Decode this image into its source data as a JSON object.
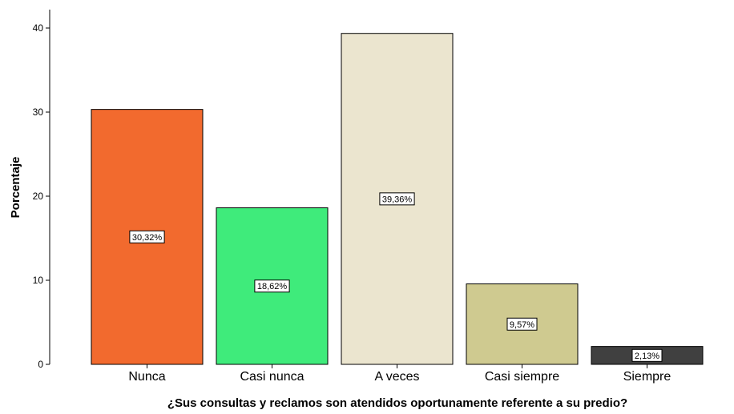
{
  "chart_data": {
    "type": "bar",
    "xlabel": "¿Sus consultas y reclamos son atendidos oportunamente referente a su predio?",
    "ylabel": "Porcentaje",
    "ylim": [
      0,
      42
    ],
    "yticks": [
      0,
      10,
      20,
      30,
      40
    ],
    "grid": false,
    "categories": [
      "Nunca",
      "Casi nunca",
      "A veces",
      "Casi siempre",
      "Siempre"
    ],
    "values": [
      30.32,
      18.62,
      39.36,
      9.57,
      2.13
    ],
    "data_labels": [
      "30,32%",
      "18,62%",
      "39,36%",
      "9,57%",
      "2,13%"
    ],
    "colors": [
      "#f26a2e",
      "#3feb7b",
      "#ebe5cf",
      "#cfca90",
      "#404040"
    ]
  }
}
